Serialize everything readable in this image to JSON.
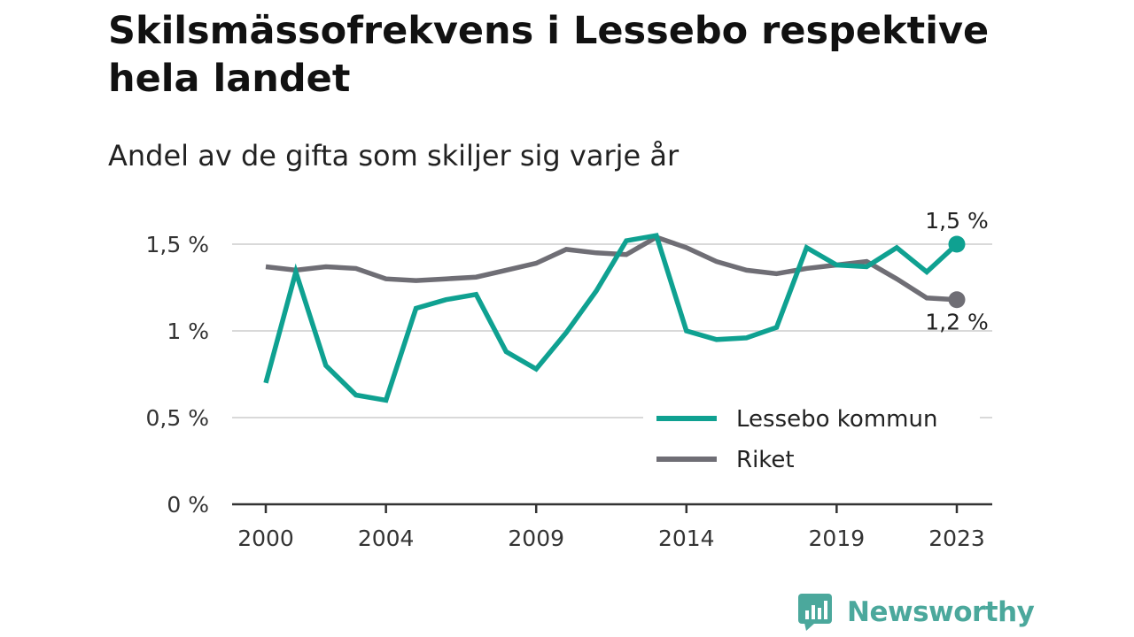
{
  "title": "Skilsmässofrekvens i Lessebo respektive hela landet",
  "subtitle": "Andel av de gifta som skiljer sig varje år",
  "brand": "Newsworthy",
  "colors": {
    "lessebo": "#0fa191",
    "riket": "#6f6e75",
    "grid": "#d9d9d9",
    "axis": "#333333",
    "brand": "#4ba89c"
  },
  "chart_data": {
    "type": "line",
    "title": "Skilsmässofrekvens i Lessebo respektive hela landet",
    "subtitle": "Andel av de gifta som skiljer sig varje år",
    "xlabel": "",
    "ylabel": "",
    "x": [
      2000,
      2001,
      2002,
      2003,
      2004,
      2005,
      2006,
      2007,
      2008,
      2009,
      2010,
      2011,
      2012,
      2013,
      2014,
      2015,
      2016,
      2017,
      2018,
      2019,
      2020,
      2021,
      2022,
      2023
    ],
    "x_ticks": [
      2000,
      2004,
      2009,
      2014,
      2019,
      2023
    ],
    "x_tick_labels": [
      "2000",
      "2004",
      "2009",
      "2014",
      "2019",
      "2023"
    ],
    "xlim": [
      2000,
      2023
    ],
    "ylim": [
      0,
      1.6
    ],
    "y_ticks": [
      0,
      0.5,
      1,
      1.5
    ],
    "y_tick_labels": [
      "0 %",
      "0,5 %",
      "1 %",
      "1,5 %"
    ],
    "grid": true,
    "legend_position": "bottom-right",
    "series": [
      {
        "name": "Lessebo kommun",
        "color": "#0fa191",
        "values": [
          0.7,
          1.34,
          0.8,
          0.63,
          0.6,
          1.13,
          1.18,
          1.21,
          0.88,
          0.78,
          0.99,
          1.23,
          1.52,
          1.55,
          1.0,
          0.95,
          0.96,
          1.02,
          1.48,
          1.38,
          1.37,
          1.48,
          1.34,
          1.5
        ],
        "end_label": "1,5 %"
      },
      {
        "name": "Riket",
        "color": "#6f6e75",
        "values": [
          1.37,
          1.35,
          1.37,
          1.36,
          1.3,
          1.29,
          1.3,
          1.31,
          1.35,
          1.39,
          1.47,
          1.45,
          1.44,
          1.54,
          1.48,
          1.4,
          1.35,
          1.33,
          1.36,
          1.38,
          1.4,
          1.3,
          1.19,
          1.18
        ],
        "end_label": "1,2 %"
      }
    ]
  }
}
